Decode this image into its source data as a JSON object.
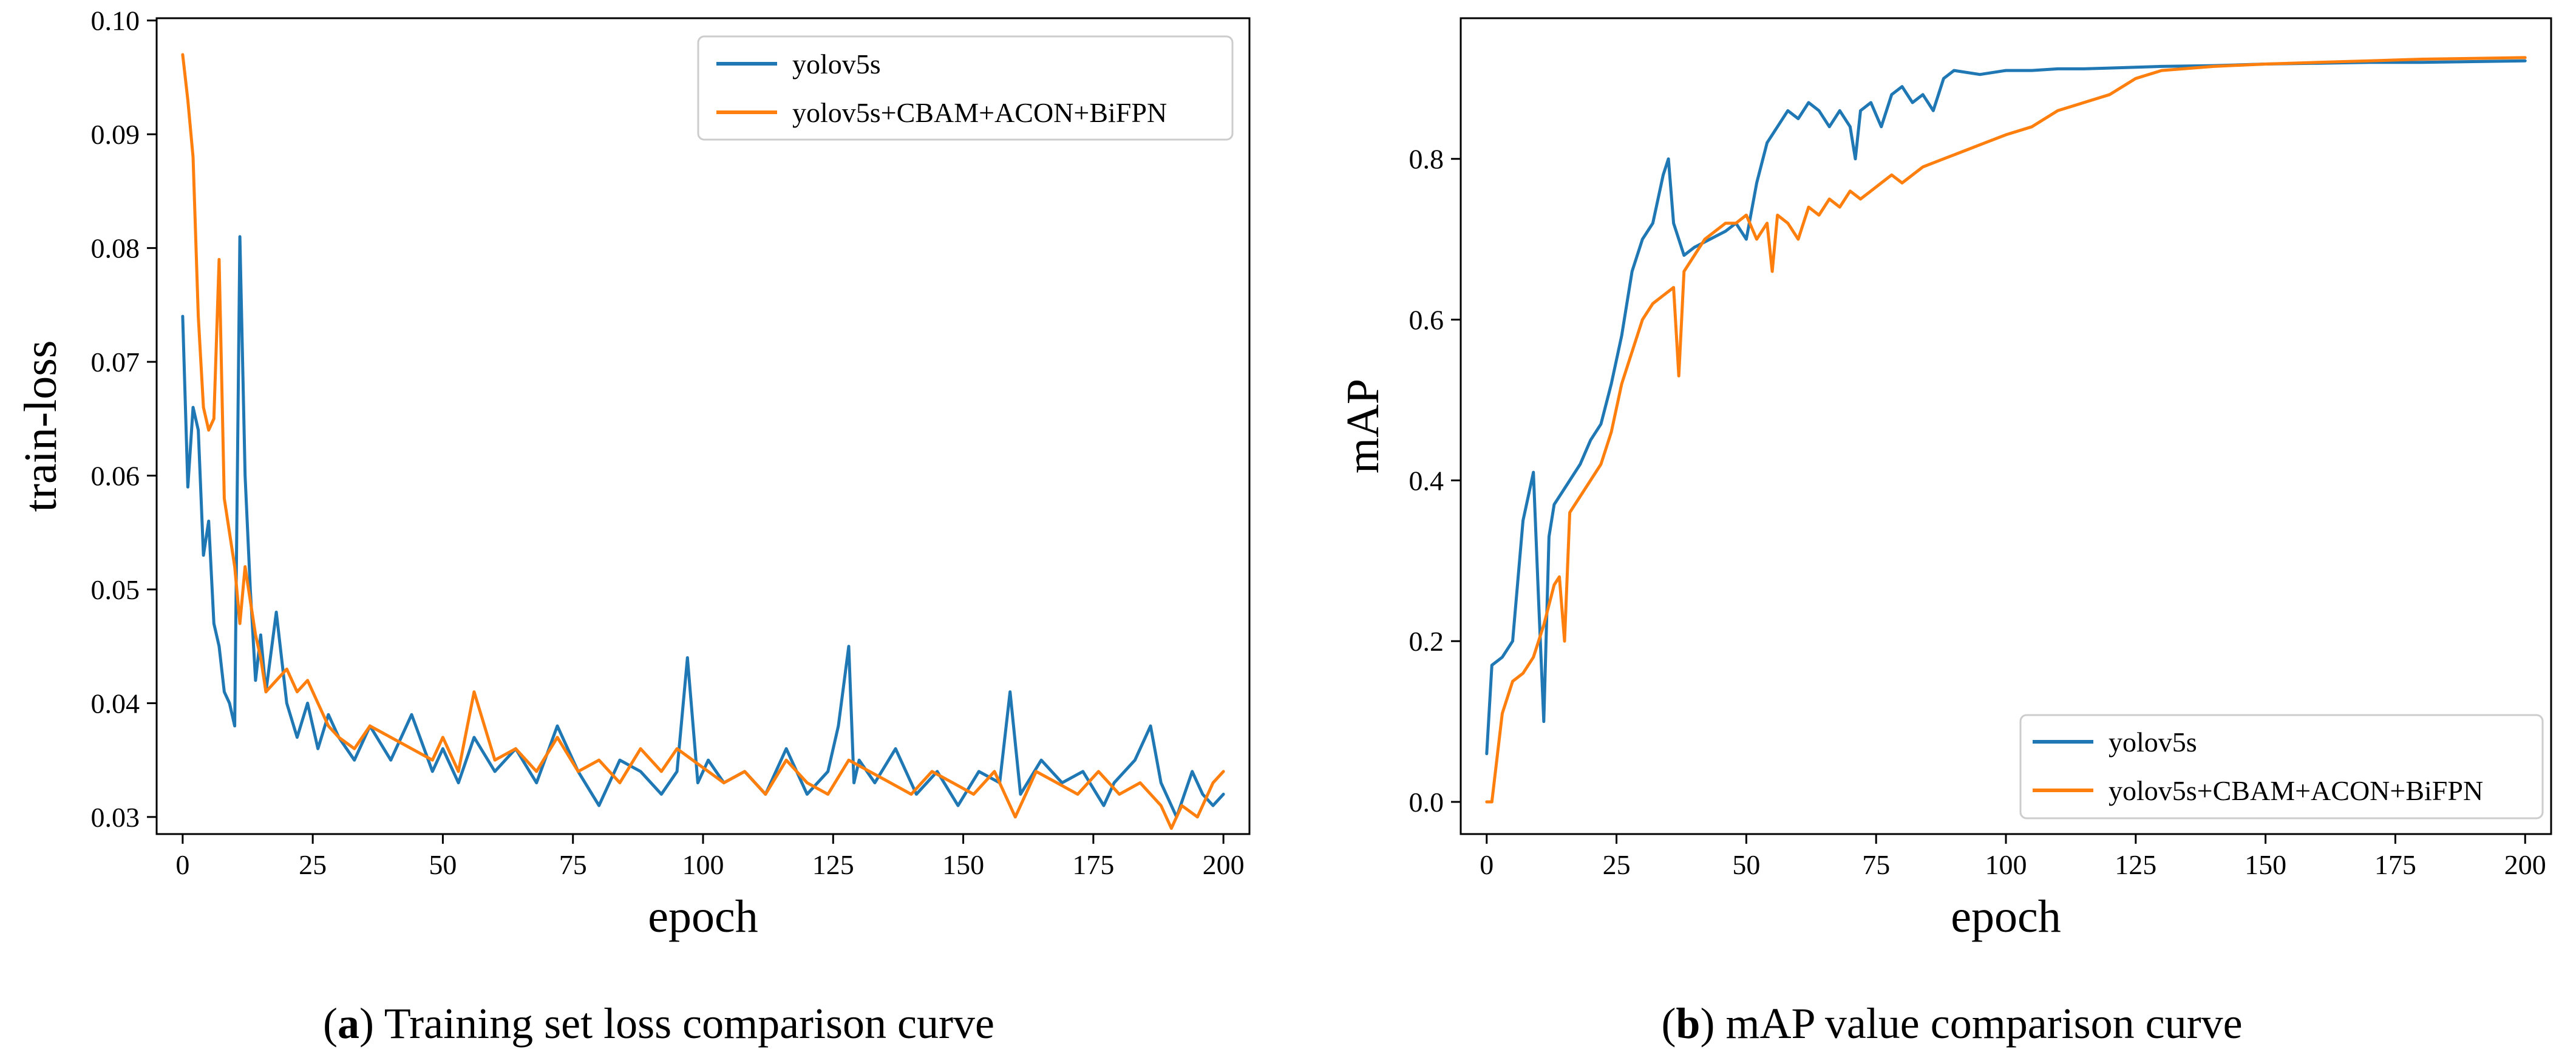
{
  "chart_data": [
    {
      "type": "line",
      "ylabel": "train-loss",
      "xlabel": "epoch",
      "caption": {
        "open": "(",
        "letter": "a",
        "text": ") Training set loss comparison curve"
      },
      "xlim": [
        -5,
        205
      ],
      "ylim": [
        0.0285,
        0.1002
      ],
      "xticks": [
        0,
        25,
        50,
        75,
        100,
        125,
        150,
        175,
        200
      ],
      "yticks": [
        0.03,
        0.04,
        0.05,
        0.06,
        0.07,
        0.08,
        0.09,
        0.1
      ],
      "ytick_labels": [
        "0.03",
        "0.04",
        "0.05",
        "0.06",
        "0.07",
        "0.08",
        "0.09",
        "0.10"
      ],
      "legend_position": "top-right",
      "series": [
        {
          "name": "yolov5s",
          "color": "#1f77b4",
          "x": [
            0,
            1,
            2,
            3,
            4,
            5,
            6,
            7,
            8,
            9,
            10,
            11,
            12,
            13,
            14,
            15,
            16,
            18,
            20,
            22,
            24,
            26,
            28,
            30,
            33,
            36,
            40,
            44,
            48,
            50,
            53,
            56,
            60,
            64,
            68,
            72,
            76,
            80,
            84,
            88,
            92,
            95,
            97,
            99,
            101,
            104,
            108,
            112,
            116,
            120,
            124,
            126,
            128,
            129,
            130,
            133,
            137,
            141,
            145,
            149,
            153,
            157,
            159,
            161,
            165,
            169,
            173,
            177,
            179,
            183,
            186,
            188,
            191,
            194,
            196,
            198,
            200
          ],
          "values": [
            0.074,
            0.059,
            0.066,
            0.064,
            0.053,
            0.056,
            0.047,
            0.045,
            0.041,
            0.04,
            0.038,
            0.081,
            0.06,
            0.05,
            0.042,
            0.046,
            0.041,
            0.048,
            0.04,
            0.037,
            0.04,
            0.036,
            0.039,
            0.037,
            0.035,
            0.038,
            0.035,
            0.039,
            0.034,
            0.036,
            0.033,
            0.037,
            0.034,
            0.036,
            0.033,
            0.038,
            0.034,
            0.031,
            0.035,
            0.034,
            0.032,
            0.034,
            0.044,
            0.033,
            0.035,
            0.033,
            0.034,
            0.032,
            0.036,
            0.032,
            0.034,
            0.038,
            0.045,
            0.033,
            0.035,
            0.033,
            0.036,
            0.032,
            0.034,
            0.031,
            0.034,
            0.033,
            0.041,
            0.032,
            0.035,
            0.033,
            0.034,
            0.031,
            0.033,
            0.035,
            0.038,
            0.033,
            0.03,
            0.034,
            0.032,
            0.031,
            0.032
          ]
        },
        {
          "name": "yolov5s+CBAM+ACON+BiFPN",
          "color": "#ff7f0e",
          "x": [
            0,
            1,
            2,
            3,
            4,
            5,
            6,
            7,
            8,
            9,
            10,
            11,
            12,
            13,
            14,
            15,
            16,
            18,
            20,
            22,
            24,
            26,
            28,
            30,
            33,
            36,
            40,
            44,
            48,
            50,
            53,
            56,
            60,
            64,
            68,
            72,
            76,
            80,
            84,
            88,
            92,
            95,
            98,
            101,
            104,
            108,
            112,
            116,
            120,
            124,
            128,
            132,
            136,
            140,
            144,
            148,
            152,
            156,
            160,
            164,
            168,
            172,
            176,
            180,
            184,
            188,
            190,
            192,
            195,
            198,
            200
          ],
          "values": [
            0.097,
            0.093,
            0.088,
            0.074,
            0.066,
            0.064,
            0.065,
            0.079,
            0.058,
            0.055,
            0.052,
            0.047,
            0.052,
            0.049,
            0.046,
            0.044,
            0.041,
            0.042,
            0.043,
            0.041,
            0.042,
            0.04,
            0.038,
            0.037,
            0.036,
            0.038,
            0.037,
            0.036,
            0.035,
            0.037,
            0.034,
            0.041,
            0.035,
            0.036,
            0.034,
            0.037,
            0.034,
            0.035,
            0.033,
            0.036,
            0.034,
            0.036,
            0.035,
            0.034,
            0.033,
            0.034,
            0.032,
            0.035,
            0.033,
            0.032,
            0.035,
            0.034,
            0.033,
            0.032,
            0.034,
            0.033,
            0.032,
            0.034,
            0.03,
            0.034,
            0.033,
            0.032,
            0.034,
            0.032,
            0.033,
            0.031,
            0.029,
            0.031,
            0.03,
            0.033,
            0.034
          ]
        }
      ]
    },
    {
      "type": "line",
      "ylabel": "mAP",
      "xlabel": "epoch",
      "caption": {
        "open": "(",
        "letter": "b",
        "text": ") mAP value comparison curve"
      },
      "xlim": [
        -5,
        205
      ],
      "ylim": [
        -0.04,
        0.975
      ],
      "xticks": [
        0,
        25,
        50,
        75,
        100,
        125,
        150,
        175,
        200
      ],
      "yticks": [
        0.0,
        0.2,
        0.4,
        0.6,
        0.8
      ],
      "ytick_labels": [
        "0.0",
        "0.2",
        "0.4",
        "0.6",
        "0.8"
      ],
      "legend_position": "bottom-right",
      "series": [
        {
          "name": "yolov5s",
          "color": "#1f77b4",
          "x": [
            0,
            1,
            3,
            5,
            7,
            8,
            9,
            10,
            11,
            12,
            13,
            14,
            16,
            18,
            20,
            22,
            24,
            26,
            28,
            30,
            32,
            34,
            35,
            36,
            38,
            40,
            43,
            46,
            48,
            50,
            52,
            54,
            56,
            58,
            60,
            62,
            64,
            66,
            68,
            70,
            71,
            72,
            74,
            76,
            78,
            80,
            82,
            84,
            86,
            88,
            90,
            95,
            100,
            105,
            110,
            115,
            120,
            130,
            140,
            150,
            160,
            170,
            180,
            190,
            200
          ],
          "values": [
            0.06,
            0.17,
            0.18,
            0.2,
            0.35,
            0.38,
            0.41,
            0.25,
            0.1,
            0.33,
            0.37,
            0.38,
            0.4,
            0.42,
            0.45,
            0.47,
            0.52,
            0.58,
            0.66,
            0.7,
            0.72,
            0.78,
            0.8,
            0.72,
            0.68,
            0.69,
            0.7,
            0.71,
            0.72,
            0.7,
            0.77,
            0.82,
            0.84,
            0.86,
            0.85,
            0.87,
            0.86,
            0.84,
            0.86,
            0.84,
            0.8,
            0.86,
            0.87,
            0.84,
            0.88,
            0.89,
            0.87,
            0.88,
            0.86,
            0.9,
            0.91,
            0.905,
            0.91,
            0.91,
            0.912,
            0.912,
            0.913,
            0.915,
            0.916,
            0.918,
            0.919,
            0.92,
            0.92,
            0.921,
            0.922
          ]
        },
        {
          "name": "yolov5s+CBAM+ACON+BiFPN",
          "color": "#ff7f0e",
          "x": [
            0,
            1,
            3,
            5,
            7,
            9,
            11,
            13,
            14,
            15,
            16,
            18,
            20,
            22,
            24,
            26,
            28,
            30,
            32,
            34,
            36,
            37,
            38,
            40,
            42,
            44,
            46,
            48,
            50,
            52,
            54,
            55,
            56,
            58,
            60,
            62,
            64,
            66,
            68,
            70,
            72,
            74,
            76,
            78,
            80,
            84,
            88,
            92,
            96,
            100,
            105,
            110,
            115,
            120,
            125,
            130,
            140,
            150,
            160,
            170,
            180,
            190,
            200
          ],
          "values": [
            0.0,
            0.0,
            0.11,
            0.15,
            0.16,
            0.18,
            0.22,
            0.27,
            0.28,
            0.2,
            0.36,
            0.38,
            0.4,
            0.42,
            0.46,
            0.52,
            0.56,
            0.6,
            0.62,
            0.63,
            0.64,
            0.53,
            0.66,
            0.68,
            0.7,
            0.71,
            0.72,
            0.72,
            0.73,
            0.7,
            0.72,
            0.66,
            0.73,
            0.72,
            0.7,
            0.74,
            0.73,
            0.75,
            0.74,
            0.76,
            0.75,
            0.76,
            0.77,
            0.78,
            0.77,
            0.79,
            0.8,
            0.81,
            0.82,
            0.83,
            0.84,
            0.86,
            0.87,
            0.88,
            0.9,
            0.91,
            0.915,
            0.918,
            0.92,
            0.922,
            0.924,
            0.925,
            0.926
          ]
        }
      ]
    }
  ]
}
